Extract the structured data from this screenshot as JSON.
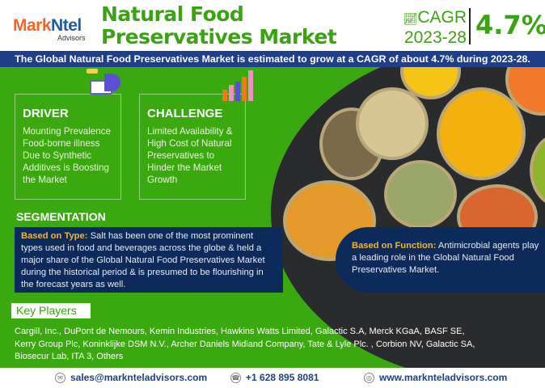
{
  "brand": {
    "logo_part1": "Mark",
    "logo_part2": "Ntel",
    "logo_sub": "Advisors"
  },
  "title": {
    "line1": "Natural Food",
    "line2": "Preservatives Market"
  },
  "cagr": {
    "label": "CAGR",
    "period": "2023-28",
    "value": "4.7%"
  },
  "banner": "The Global Natural Food Preservatives Market is estimated to grow at a CAGR of about 4.7% during  2023-28.",
  "driver": {
    "heading": "DRIVER",
    "text": "Mounting Prevalence Food-borne illness Due to Synthetic Additives is Boosting the Market",
    "icon": "megaphone-laptop-icon"
  },
  "challenge": {
    "heading": "CHALLENGE",
    "text": "Limited Availability & High Cost of Natural Preservatives to Hinder the Market Growth",
    "icon": "bar-chart-growth-icon"
  },
  "segmentation": {
    "heading": "SEGMENTATION",
    "type": {
      "label": "Based on Type:",
      "text": " Salt has been one of the most prominent types used in food and beverages across the globe & held a major share of the Global Natural Food Preservatives Market during the historical period & is presumed to be flourishing in the forecast years as well."
    },
    "function": {
      "label": "Based on Function:",
      "text": " Antimicrobial agents play a leading role in the Global Natural Food Preservatives Market."
    }
  },
  "key_players": {
    "heading": "Key Players",
    "text": "Cargill, Inc., DuPont de Nemours, Kemin Industries, Hawkins Watts Limited, Galactic S.A, Merck KGaA, BASF SE, Kerry Group Plc, Koninklijke DSM N.V., Archer Daniels Midland Company, Tate & Lyle Plc. , Corbion NV, Galactic SA, Biosecur Lab, ITA 3, Others"
  },
  "footer": {
    "email": "sales@marknteladvisors.com",
    "phone": "+1 628 895 8081",
    "website": "www.marknteladvisors.com"
  },
  "colors": {
    "green": "#3aa90f",
    "navy": "#0c2a5a",
    "banner": "#1e3f8a",
    "accent": "#f2b632",
    "logo_orange": "#f26522"
  }
}
